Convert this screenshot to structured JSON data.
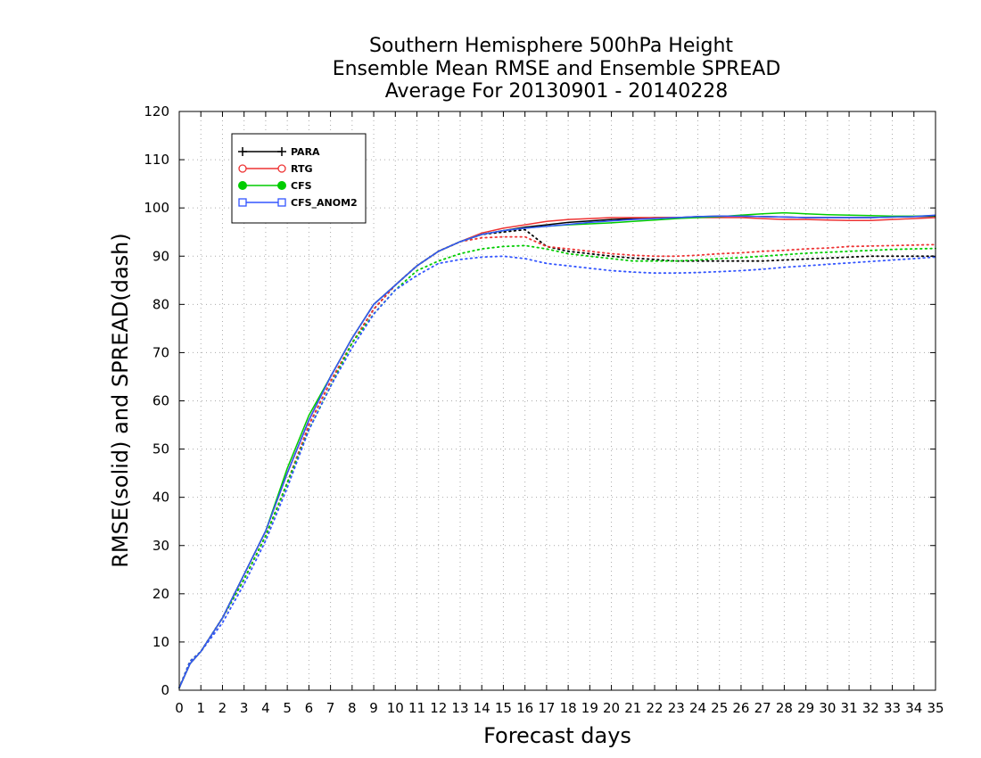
{
  "chart_data": {
    "type": "line",
    "title_lines": [
      "Southern Hemisphere 500hPa Height",
      "Ensemble Mean RMSE and Ensemble SPREAD",
      "Average For 20130901 - 20140228"
    ],
    "xlabel": "Forecast days",
    "ylabel": "RMSE(solid) and SPREAD(dash)",
    "xlim": [
      0,
      35
    ],
    "ylim": [
      0,
      120
    ],
    "x_ticks": [
      0,
      1,
      2,
      3,
      4,
      5,
      6,
      7,
      8,
      9,
      10,
      11,
      12,
      13,
      14,
      15,
      16,
      17,
      18,
      19,
      20,
      21,
      22,
      23,
      24,
      25,
      26,
      27,
      28,
      29,
      30,
      31,
      32,
      33,
      34,
      35
    ],
    "y_ticks": [
      0,
      10,
      20,
      30,
      40,
      50,
      60,
      70,
      80,
      90,
      100,
      110,
      120
    ],
    "grid": true,
    "legend_position": "top-left",
    "x": [
      0,
      0.5,
      1,
      2,
      3,
      4,
      5,
      6,
      7,
      8,
      9,
      10,
      11,
      12,
      13,
      14,
      15,
      16,
      17,
      18,
      19,
      20,
      21,
      22,
      23,
      24,
      25,
      26,
      27,
      28,
      29,
      30,
      31,
      32,
      33,
      34,
      35
    ],
    "series": [
      {
        "name": "PARA",
        "color": "#000000",
        "marker": "plus",
        "rmse": [
          0.5,
          5.5,
          8,
          15,
          24,
          33,
          45,
          56,
          65,
          73,
          80,
          84,
          88,
          91,
          93,
          94.5,
          95.3,
          96,
          96.5,
          97,
          97.3,
          97.6,
          97.8,
          98,
          98,
          98.2,
          98.3,
          98.3,
          98.2,
          98.1,
          98,
          98,
          98,
          98,
          98.1,
          98.2,
          98.3
        ],
        "spread": [
          0.5,
          6,
          8,
          15,
          23,
          32,
          43,
          55,
          64,
          72,
          79,
          84,
          88,
          91,
          93,
          94.5,
          95,
          95.5,
          92,
          91,
          90.5,
          90,
          89.6,
          89.3,
          89,
          89,
          89,
          89,
          89,
          89.2,
          89.4,
          89.6,
          89.8,
          90,
          90,
          90,
          90
        ]
      },
      {
        "name": "RTG",
        "color": "#ee3333",
        "marker": "open-circle",
        "rmse": [
          0.5,
          5.5,
          8,
          15,
          24,
          33,
          45,
          56,
          65,
          73,
          80,
          84,
          88,
          91,
          93,
          94.8,
          95.8,
          96.5,
          97.2,
          97.6,
          97.8,
          98,
          98,
          98,
          98,
          98,
          98,
          98,
          97.8,
          97.6,
          97.6,
          97.5,
          97.4,
          97.4,
          97.6,
          97.8,
          98
        ],
        "spread": [
          0.5,
          6,
          8,
          15,
          23,
          32,
          43,
          55,
          64,
          72,
          79,
          84,
          88,
          91,
          93,
          93.8,
          94,
          94,
          92,
          91.5,
          91,
          90.5,
          90.2,
          90,
          90,
          90.2,
          90.5,
          90.7,
          91,
          91.2,
          91.5,
          91.7,
          92,
          92.1,
          92.2,
          92.3,
          92.4
        ]
      },
      {
        "name": "CFS",
        "color": "#00cc00",
        "marker": "filled-circle",
        "rmse": [
          0.5,
          5.5,
          8,
          15,
          24,
          33,
          46,
          57,
          65,
          73,
          80,
          84,
          88,
          91,
          93,
          94.5,
          95.3,
          95.8,
          96.2,
          96.5,
          96.7,
          96.9,
          97.2,
          97.5,
          97.8,
          98,
          98.2,
          98.5,
          98.8,
          99,
          98.8,
          98.6,
          98.5,
          98.4,
          98.3,
          98.3,
          98.4
        ],
        "spread": [
          0.5,
          6,
          8,
          15,
          23,
          32,
          43,
          54,
          63,
          72,
          78,
          83,
          87,
          89,
          90.5,
          91.5,
          92,
          92.2,
          91.5,
          90.5,
          90,
          89.5,
          89,
          89,
          89,
          89.2,
          89.5,
          89.7,
          90,
          90.3,
          90.6,
          90.8,
          91,
          91.2,
          91.4,
          91.5,
          91.6
        ]
      },
      {
        "name": "CFS_ANOM2",
        "color": "#3355ff",
        "marker": "open-square",
        "rmse": [
          0.5,
          5.5,
          8,
          15,
          24,
          33,
          45,
          56,
          65,
          73,
          80,
          84,
          88,
          91,
          93,
          94.5,
          95.3,
          95.8,
          96.2,
          96.6,
          97,
          97.3,
          97.6,
          97.8,
          98,
          98.2,
          98.3,
          98.3,
          98.2,
          98.1,
          98,
          98,
          98,
          98,
          98.1,
          98.2,
          98.5
        ],
        "spread": [
          0.5,
          6,
          8,
          14,
          22,
          31,
          42,
          54,
          63,
          71,
          78,
          83,
          86,
          88.5,
          89.3,
          89.8,
          90,
          89.5,
          88.5,
          88,
          87.5,
          87,
          86.7,
          86.5,
          86.5,
          86.6,
          86.8,
          87,
          87.3,
          87.7,
          88,
          88.3,
          88.6,
          88.9,
          89.2,
          89.5,
          89.8
        ]
      }
    ]
  }
}
